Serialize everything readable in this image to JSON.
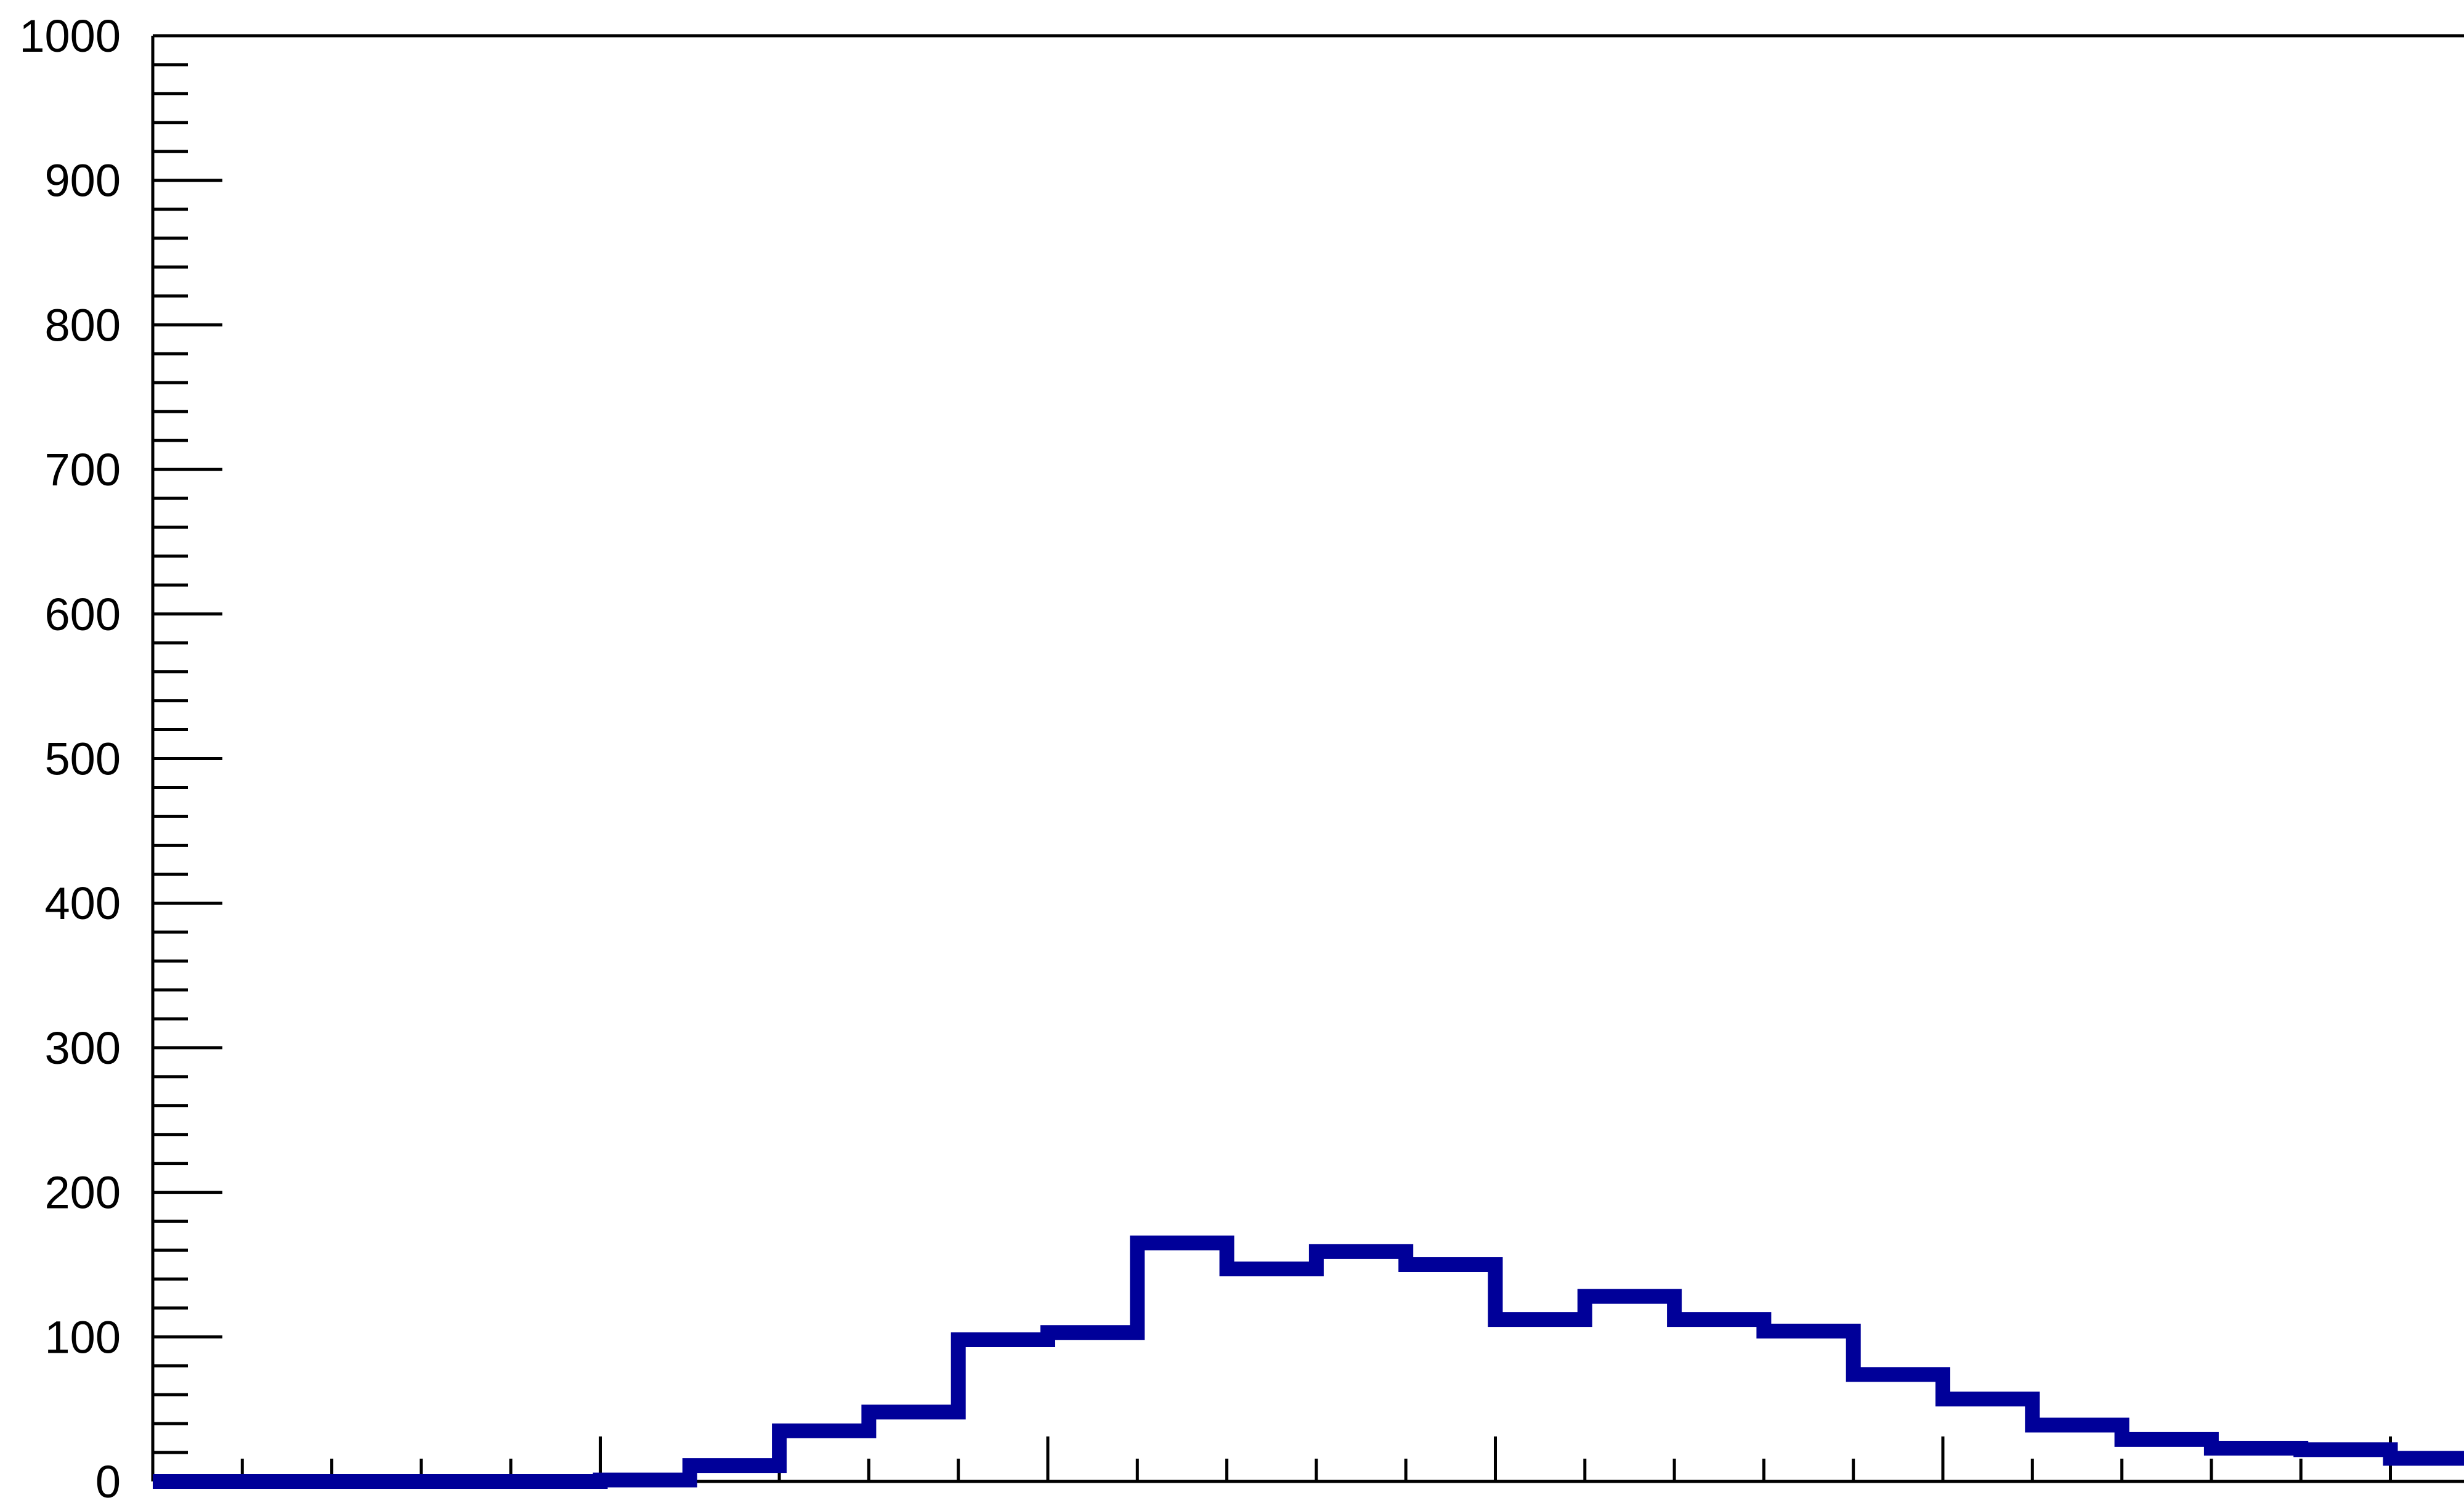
{
  "chart_data": {
    "type": "bar",
    "title": "",
    "xlabel": "",
    "ylabel": "",
    "ylim": [
      0,
      1000
    ],
    "y_ticks": [
      "0",
      "100",
      "200",
      "300",
      "400",
      "500",
      "600",
      "700",
      "800",
      "900",
      "1000"
    ],
    "grid": false,
    "legend": "none",
    "line_color": "#000099",
    "bins": [
      {
        "index": 0,
        "value": 0
      },
      {
        "index": 1,
        "value": 0
      },
      {
        "index": 2,
        "value": 0
      },
      {
        "index": 3,
        "value": 0
      },
      {
        "index": 4,
        "value": 0
      },
      {
        "index": 5,
        "value": 1
      },
      {
        "index": 6,
        "value": 11
      },
      {
        "index": 7,
        "value": 35
      },
      {
        "index": 8,
        "value": 48
      },
      {
        "index": 9,
        "value": 98
      },
      {
        "index": 10,
        "value": 103
      },
      {
        "index": 11,
        "value": 165
      },
      {
        "index": 12,
        "value": 147
      },
      {
        "index": 13,
        "value": 159
      },
      {
        "index": 14,
        "value": 150
      },
      {
        "index": 15,
        "value": 112
      },
      {
        "index": 16,
        "value": 128
      },
      {
        "index": 17,
        "value": 112
      },
      {
        "index": 18,
        "value": 104
      },
      {
        "index": 19,
        "value": 74
      },
      {
        "index": 20,
        "value": 57
      },
      {
        "index": 21,
        "value": 39
      },
      {
        "index": 22,
        "value": 29
      },
      {
        "index": 23,
        "value": 23
      },
      {
        "index": 24,
        "value": 22
      },
      {
        "index": 25,
        "value": 16
      },
      {
        "index": 26,
        "value": 16
      }
    ]
  }
}
